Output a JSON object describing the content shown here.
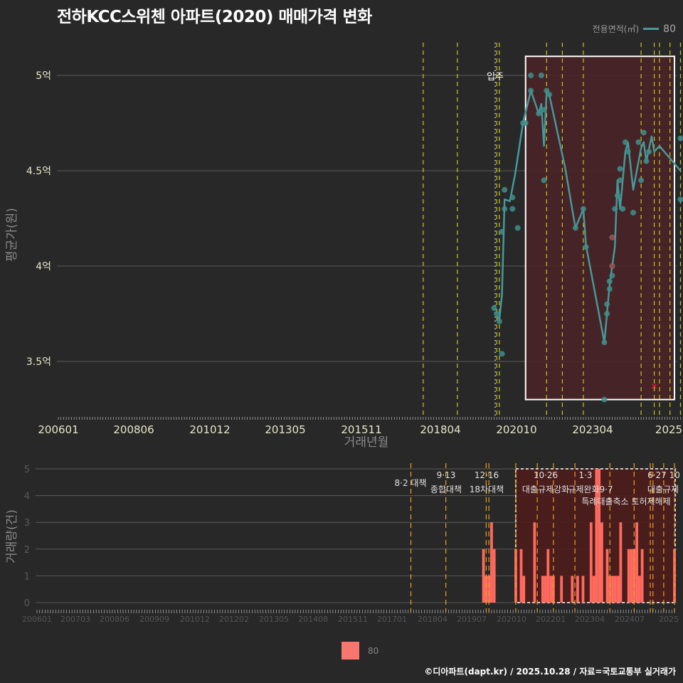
{
  "title": "전하KCC스위첸 아파트(2020) 매매가격 변화",
  "legend_top": {
    "label": "전용면적(㎡)",
    "value": "80",
    "color": "#4a9a9a"
  },
  "legend_bottom": {
    "value": "80",
    "color": "#f8766d"
  },
  "footer": "©디아파트(dapt.kr) / 2025.10.28 / 자료=국토교통부 실거래가",
  "annotation_move_in": "입주",
  "chart_data": [
    {
      "type": "line",
      "title": "전하KCC스위첸 아파트(2020) 매매가격 변화",
      "xlabel": "거래년월",
      "ylabel": "평균가(원)",
      "y_ticks": [
        "5억",
        "4.5억",
        "4억",
        "3.5억"
      ],
      "y_tick_values": [
        5.0,
        4.5,
        4.0,
        3.5
      ],
      "x_ticks": [
        "200601",
        "200806",
        "201012",
        "201305",
        "201511",
        "201804",
        "202010",
        "202304",
        "2025"
      ],
      "ylim": [
        3.22,
        5.2
      ],
      "grid": true,
      "legend": {
        "title": "전용면적(㎡)",
        "entries": [
          "80"
        ],
        "position": "top-right"
      },
      "highlight_box": {
        "x_start": "202011",
        "x_end": "202510",
        "y_range": [
          3.3,
          5.1
        ]
      },
      "series": [
        {
          "name": "80",
          "line": [
            [
              "201912",
              3.74
            ],
            [
              "202001",
              3.72
            ],
            [
              "202002",
              3.85
            ],
            [
              "202003",
              4.35
            ],
            [
              "202005",
              4.34
            ],
            [
              "202007",
              4.48
            ],
            [
              "202010",
              4.75
            ],
            [
              "202101",
              4.92
            ],
            [
              "202104",
              4.8
            ],
            [
              "202105",
              4.85
            ],
            [
              "202106",
              4.63
            ],
            [
              "202107",
              4.91
            ],
            [
              "202108",
              4.9
            ],
            [
              "202202",
              4.52
            ],
            [
              "202206",
              4.2
            ],
            [
              "202209",
              4.3
            ],
            [
              "202210",
              4.11
            ],
            [
              "202305",
              3.6
            ],
            [
              "202307",
              3.9
            ],
            [
              "202309",
              4.1
            ],
            [
              "202310",
              4.45
            ],
            [
              "202311",
              4.3
            ],
            [
              "202401",
              4.6
            ],
            [
              "202402",
              4.65
            ],
            [
              "202404",
              4.4
            ],
            [
              "202407",
              4.62
            ],
            [
              "202408",
              4.65
            ],
            [
              "202409",
              4.55
            ],
            [
              "202411",
              4.68
            ],
            [
              "202412",
              4.6
            ],
            [
              "202502",
              4.63
            ],
            [
              "202510",
              4.5
            ]
          ],
          "points": [
            [
              "201911",
              3.78
            ],
            [
              "201912",
              3.75
            ],
            [
              "202001",
              3.71
            ],
            [
              "202002",
              3.54
            ],
            [
              "202002",
              4.18
            ],
            [
              "202003",
              4.3
            ],
            [
              "202003",
              4.4
            ],
            [
              "202006",
              4.3
            ],
            [
              "202006",
              4.36
            ],
            [
              "202008",
              4.2
            ],
            [
              "202010",
              4.75
            ],
            [
              "202011",
              4.75
            ],
            [
              "202101",
              5.0
            ],
            [
              "202101",
              4.92
            ],
            [
              "202104",
              4.8
            ],
            [
              "202105",
              5.0
            ],
            [
              "202106",
              4.82
            ],
            [
              "202106",
              4.45
            ],
            [
              "202107",
              4.92
            ],
            [
              "202108",
              4.9
            ],
            [
              "202206",
              4.2
            ],
            [
              "202209",
              4.3
            ],
            [
              "202210",
              4.1
            ],
            [
              "202305",
              3.6
            ],
            [
              "202305",
              3.3
            ],
            [
              "202306",
              3.75
            ],
            [
              "202306",
              3.8
            ],
            [
              "202307",
              3.88
            ],
            [
              "202307",
              3.92
            ],
            [
              "202308",
              3.95
            ],
            [
              "202308",
              4.0
            ],
            [
              "202308",
              4.15
            ],
            [
              "202309",
              4.3
            ],
            [
              "202310",
              4.37
            ],
            [
              "202311",
              4.45
            ],
            [
              "202311",
              4.51
            ],
            [
              "202312",
              4.3
            ],
            [
              "202401",
              4.65
            ],
            [
              "202402",
              4.6
            ],
            [
              "202404",
              4.28
            ],
            [
              "202406",
              4.65
            ],
            [
              "202407",
              4.45
            ],
            [
              "202408",
              4.7
            ],
            [
              "202409",
              4.55
            ],
            [
              "202410",
              4.6
            ],
            [
              "202510",
              4.67
            ],
            [
              "202510",
              4.35
            ]
          ],
          "cancelled_points": [
            [
              "202308",
              4.0
            ],
            [
              "202308",
              4.15
            ],
            [
              "202412",
              3.37
            ]
          ]
        }
      ],
      "policy_lines_month": [
        "201708",
        "201809",
        "201912",
        "202001",
        "202107",
        "202201",
        "202209",
        "202407",
        "202412",
        "202502",
        "202506",
        "202510"
      ]
    },
    {
      "type": "bar",
      "ylabel": "거래량(건)",
      "y_ticks": [
        "5",
        "4",
        "3",
        "2",
        "1",
        "0"
      ],
      "ylim": [
        0,
        5
      ],
      "x_ticks": [
        "200601",
        "200703",
        "200806",
        "200909",
        "201012",
        "201202",
        "201305",
        "201408",
        "201511",
        "201701",
        "201804",
        "201907",
        "202010",
        "202201",
        "202304",
        "202407",
        "2025"
      ],
      "annotations": [
        {
          "date": "8·2",
          "label": "대책"
        },
        {
          "date": "9·13",
          "label": "종합대책"
        },
        {
          "date": "12·16",
          "label": "18차대책"
        },
        {
          "date": "10·26",
          "label": "대출규제강화"
        },
        {
          "date": "1·3",
          "label": "규제완화"
        },
        {
          "date": "9·7",
          "label": "특례대출축소 토허제해제"
        },
        {
          "date": "6·27",
          "label": "대출규제"
        },
        {
          "date": "10",
          "label": ""
        }
      ],
      "highlight_box": {
        "x_start": "202011",
        "x_end": "202510"
      },
      "series": [
        {
          "name": "80",
          "bars": [
            [
              "201911",
              2
            ],
            [
              "201912",
              1
            ],
            [
              "202001",
              1
            ],
            [
              "202002",
              3
            ],
            [
              "202003",
              2
            ],
            [
              "202011",
              2
            ],
            [
              "202101",
              2
            ],
            [
              "202102",
              1
            ],
            [
              "202106",
              3
            ],
            [
              "202109",
              1
            ],
            [
              "202110",
              1
            ],
            [
              "202111",
              2
            ],
            [
              "202112",
              1
            ],
            [
              "202201",
              1
            ],
            [
              "202204",
              1
            ],
            [
              "202208",
              1
            ],
            [
              "202210",
              1
            ],
            [
              "202212",
              1
            ],
            [
              "202303",
              3
            ],
            [
              "202304",
              1
            ],
            [
              "202305",
              5
            ],
            [
              "202306",
              5
            ],
            [
              "202307",
              3
            ],
            [
              "202309",
              2
            ],
            [
              "202310",
              1
            ],
            [
              "202311",
              1
            ],
            [
              "202312",
              1
            ],
            [
              "202401",
              1
            ],
            [
              "202402",
              3
            ],
            [
              "202405",
              2
            ],
            [
              "202406",
              2
            ],
            [
              "202407",
              2
            ],
            [
              "202408",
              3
            ],
            [
              "202409",
              1
            ],
            [
              "202410",
              2
            ],
            [
              "202510",
              2
            ]
          ]
        }
      ]
    }
  ]
}
